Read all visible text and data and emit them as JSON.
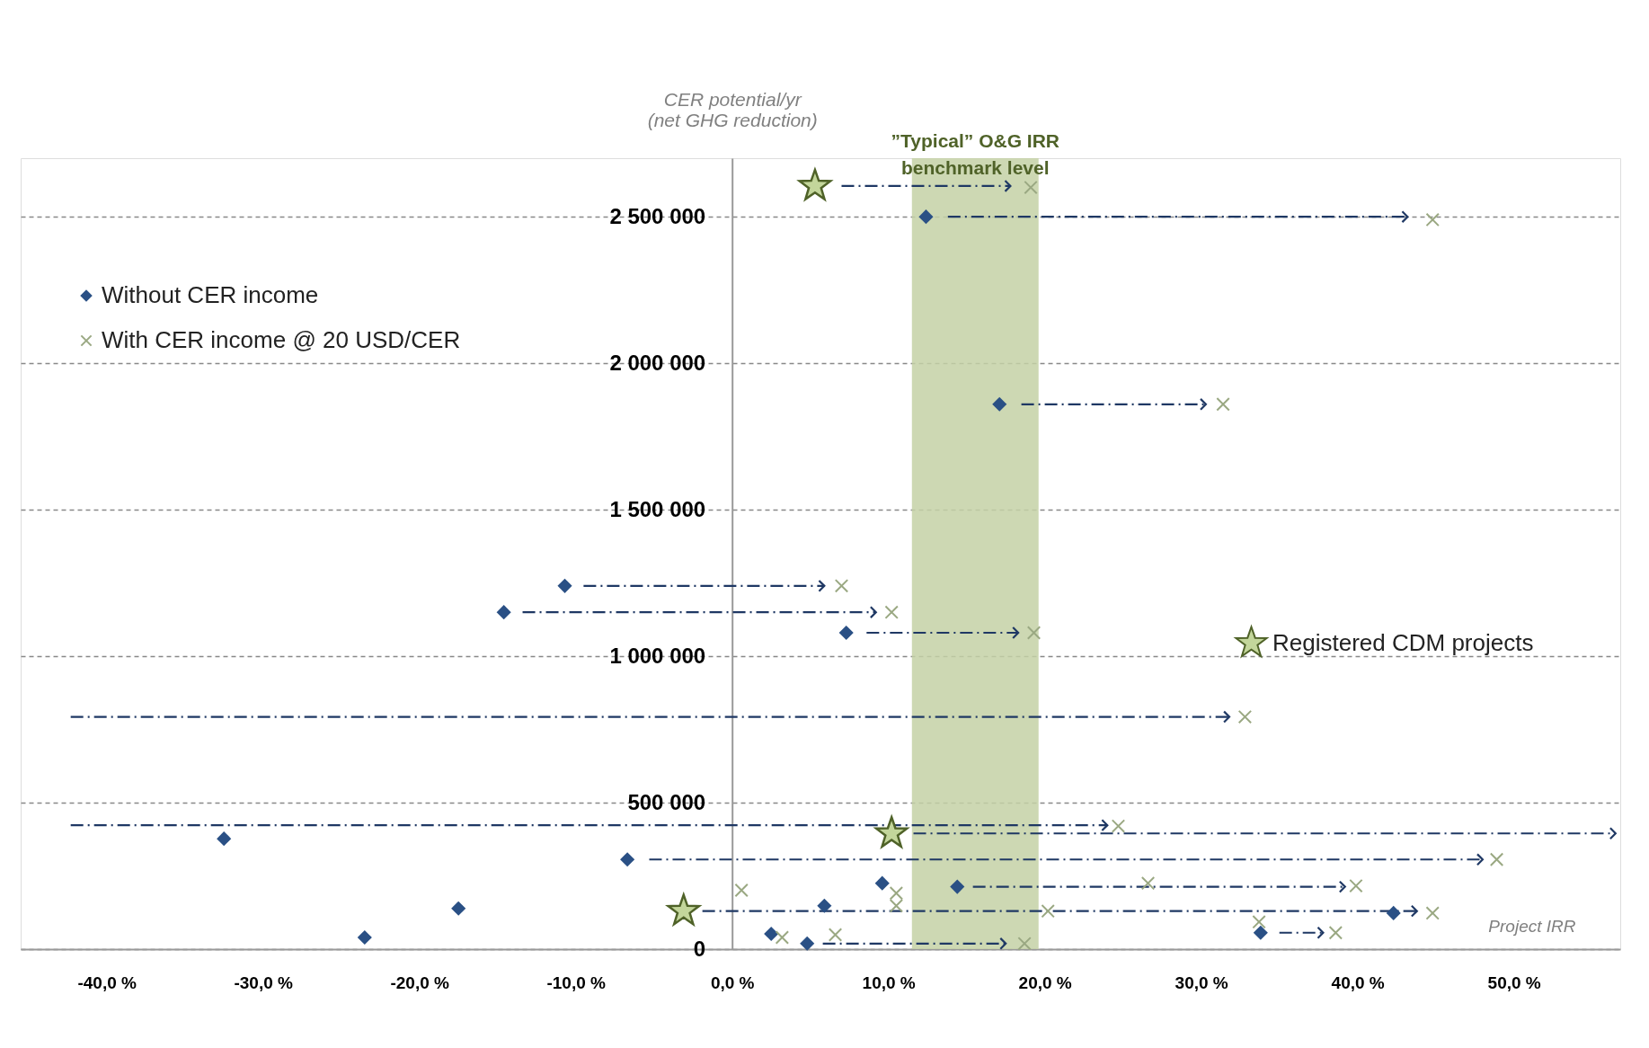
{
  "chart_data": {
    "type": "scatter",
    "xlabel": "Project IRR",
    "ylabel": "CER potential/yr\n(net GHG reduction)",
    "xlim": [
      -45.5,
      56.8
    ],
    "ylim": [
      0,
      2700000
    ],
    "xticks": [
      {
        "value": -40,
        "label": "-40,0 %"
      },
      {
        "value": -30,
        "label": "-30,0 %"
      },
      {
        "value": -20,
        "label": "-20,0 %"
      },
      {
        "value": -10,
        "label": "-10,0 %"
      },
      {
        "value": 0,
        "label": "0,0 %"
      },
      {
        "value": 10,
        "label": "10,0 %"
      },
      {
        "value": 20,
        "label": "20,0 %"
      },
      {
        "value": 30,
        "label": "30,0 %"
      },
      {
        "value": 40,
        "label": "40,0 %"
      },
      {
        "value": 50,
        "label": "50,0 %"
      }
    ],
    "yticks": [
      {
        "value": 0,
        "label": "0"
      },
      {
        "value": 500000,
        "label": "500 000"
      },
      {
        "value": 1000000,
        "label": "1 000 000"
      },
      {
        "value": 1500000,
        "label": "1 500 000"
      },
      {
        "value": 2000000,
        "label": "2 000 000"
      },
      {
        "value": 2500000,
        "label": "2 500 000"
      }
    ],
    "grid": "y",
    "legend": "top left",
    "bands": [
      {
        "axis": "x",
        "from": 11.5,
        "to": 19.6,
        "label": "”Typical” O&G IRR\nbenchmark level",
        "color": "#c4d1a6"
      }
    ],
    "series": [
      {
        "name": "Without CER income",
        "marker": "diamond",
        "color": "#2a5085",
        "x": [
          12.4,
          17.1,
          -10.7,
          -14.6,
          7.3,
          -32.5,
          -6.7,
          -17.5,
          -23.5,
          9.6,
          14.4,
          5.9,
          42.3,
          2.5,
          4.8,
          33.8
        ],
        "values": [
          2500000,
          1860000,
          1240000,
          1150000,
          1080000,
          377000,
          306000,
          139000,
          40000,
          225000,
          213000,
          148000,
          123000,
          52000,
          19000,
          56000
        ]
      },
      {
        "name": "With CER income @ 20 USD/CER",
        "marker": "cross",
        "color": "#9aa882",
        "x": [
          19.1,
          44.8,
          31.4,
          7.0,
          10.2,
          19.3,
          32.8,
          24.7,
          48.9,
          0.6,
          26.6,
          39.9,
          10.5,
          10.5,
          20.2,
          44.8,
          3.2,
          6.6,
          18.7,
          33.7,
          38.6
        ],
        "values": [
          2600000,
          2490000,
          1860000,
          1240000,
          1150000,
          1080000,
          793000,
          420000,
          306000,
          201000,
          225000,
          216000,
          191000,
          148000,
          130000,
          123000,
          40000,
          49000,
          19000,
          93000,
          56000
        ]
      },
      {
        "name": "Registered CDM projects",
        "marker": "star",
        "color": "#c3d69b",
        "x": [
          5.3,
          10.2,
          -3.1
        ],
        "values": [
          2605000,
          395000,
          130000
        ]
      },
      {
        "type": "line",
        "line_style": "dashed",
        "color": "#1f3864",
        "x": [
          7.0,
          17.8
        ],
        "values": [
          2605000,
          2605000
        ]
      },
      {
        "type": "line",
        "line_style": "dashed",
        "color": "#1f3864",
        "x": [
          13.8,
          43.2
        ],
        "values": [
          2500000,
          2500000
        ]
      },
      {
        "type": "line",
        "line_style": "dashed",
        "color": "#1f3864",
        "x": [
          18.5,
          30.3
        ],
        "values": [
          1860000,
          1860000
        ]
      },
      {
        "type": "line",
        "line_style": "dashed",
        "color": "#1f3864",
        "x": [
          -9.5,
          5.9
        ],
        "values": [
          1240000,
          1240000
        ]
      },
      {
        "type": "line",
        "line_style": "dashed",
        "color": "#1f3864",
        "x": [
          -13.4,
          9.2
        ],
        "values": [
          1150000,
          1150000
        ]
      },
      {
        "type": "line",
        "line_style": "dashed",
        "color": "#1f3864",
        "x": [
          8.6,
          18.3
        ],
        "values": [
          1080000,
          1080000
        ]
      },
      {
        "type": "line",
        "line_style": "dashed",
        "color": "#1f3864",
        "x": [
          -42.3,
          31.8
        ],
        "values": [
          793000,
          793000
        ]
      },
      {
        "type": "line",
        "line_style": "dashed",
        "color": "#1f3864",
        "x": [
          -42.3,
          24.0
        ],
        "values": [
          423000,
          423000
        ]
      },
      {
        "type": "line",
        "line_style": "dashed",
        "color": "#1f3864",
        "x": [
          11.6,
          56.5
        ],
        "values": [
          395000,
          395000
        ]
      },
      {
        "type": "line",
        "line_style": "dashed",
        "color": "#1f3864",
        "x": [
          -5.3,
          48.0
        ],
        "values": [
          306000,
          306000
        ]
      },
      {
        "type": "line",
        "line_style": "dashed",
        "color": "#1f3864",
        "x": [
          15.4,
          39.2
        ],
        "values": [
          213000,
          213000
        ]
      },
      {
        "type": "line",
        "line_style": "dashed",
        "color": "#1f3864",
        "x": [
          -1.9,
          43.8
        ],
        "values": [
          130000,
          130000
        ]
      },
      {
        "type": "line",
        "line_style": "dashed",
        "color": "#1f3864",
        "x": [
          5.8,
          17.5
        ],
        "values": [
          19000,
          19000
        ]
      },
      {
        "type": "line",
        "line_style": "dashed",
        "color": "#1f3864",
        "x": [
          35.0,
          37.8
        ],
        "values": [
          56000,
          56000
        ]
      }
    ]
  }
}
